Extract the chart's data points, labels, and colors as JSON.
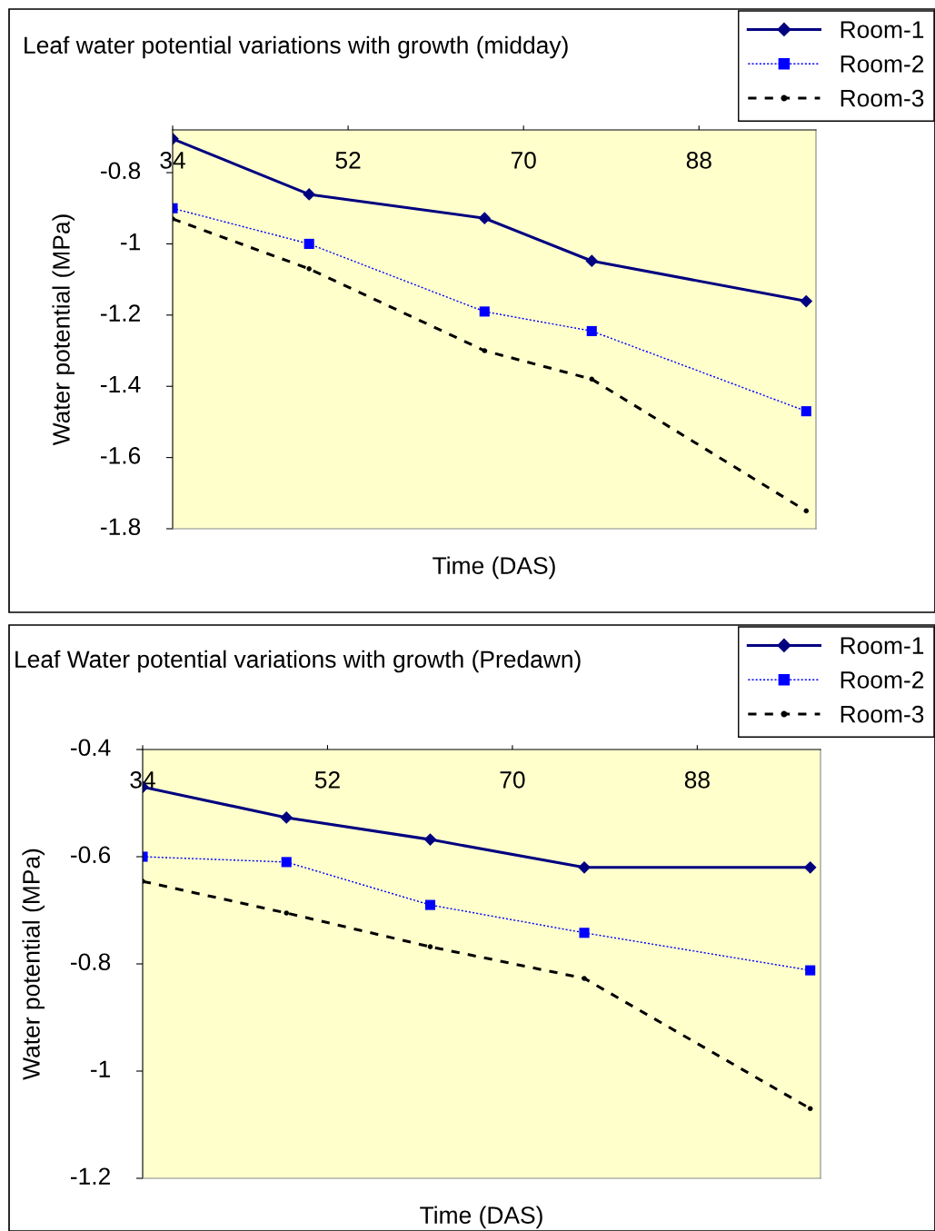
{
  "chart_data": [
    {
      "type": "line",
      "title": "Leaf water potential variations with growth (midday)",
      "xlabel": "Time (DAS)",
      "ylabel": "Water potential (MPa)",
      "xlim": [
        34,
        100
      ],
      "xticks": [
        34,
        52,
        70,
        88
      ],
      "ylim": [
        -1.8,
        -0.68
      ],
      "yticks": [
        -1.8,
        -1.6,
        -1.4,
        -1.2,
        -1,
        -0.8
      ],
      "grid": false,
      "legend": "top right",
      "series": [
        {
          "name": "Room-1",
          "color": "#000080",
          "marker": "diamond",
          "line_style": "solid",
          "x": [
            34,
            48,
            66,
            77,
            99
          ],
          "values": [
            -0.705,
            -0.861,
            -0.928,
            -1.048,
            -1.161
          ]
        },
        {
          "name": "Room-2",
          "color": "#0000ff",
          "marker": "square",
          "line_style": "dotted",
          "x": [
            34,
            48,
            66,
            77,
            99
          ],
          "values": [
            -0.9,
            -1.0,
            -1.19,
            -1.245,
            -1.47
          ]
        },
        {
          "name": "Room-3",
          "color": "#000000",
          "marker": "circle",
          "line_style": "dashed",
          "x": [
            34,
            48,
            66,
            77,
            99
          ],
          "values": [
            -0.93,
            -1.07,
            -1.3,
            -1.38,
            -1.75
          ]
        }
      ]
    },
    {
      "type": "line",
      "title": "Leaf Water potential variations with growth (Predawn)",
      "xlabel": "Time (DAS)",
      "ylabel": "Water potential (MPa)",
      "xlim": [
        34,
        100
      ],
      "xticks": [
        34,
        52,
        70,
        88
      ],
      "ylim": [
        -1.2,
        -0.4
      ],
      "yticks": [
        -1.2,
        -1,
        -0.8,
        -0.6,
        -0.4
      ],
      "grid": false,
      "legend": "top right",
      "series": [
        {
          "name": "Room-1",
          "color": "#000080",
          "marker": "diamond",
          "line_style": "solid",
          "x": [
            34,
            48,
            62,
            77,
            99
          ],
          "values": [
            -0.47,
            -0.527,
            -0.568,
            -0.62,
            -0.62
          ]
        },
        {
          "name": "Room-2",
          "color": "#0000ff",
          "marker": "square",
          "line_style": "dotted",
          "x": [
            34,
            48,
            62,
            77,
            99
          ],
          "values": [
            -0.6,
            -0.61,
            -0.69,
            -0.742,
            -0.812
          ]
        },
        {
          "name": "Room-3",
          "color": "#000000",
          "marker": "circle",
          "line_style": "dashed",
          "x": [
            34,
            48,
            62,
            77,
            99
          ],
          "values": [
            -0.646,
            -0.705,
            -0.768,
            -0.827,
            -1.07
          ]
        }
      ]
    }
  ]
}
